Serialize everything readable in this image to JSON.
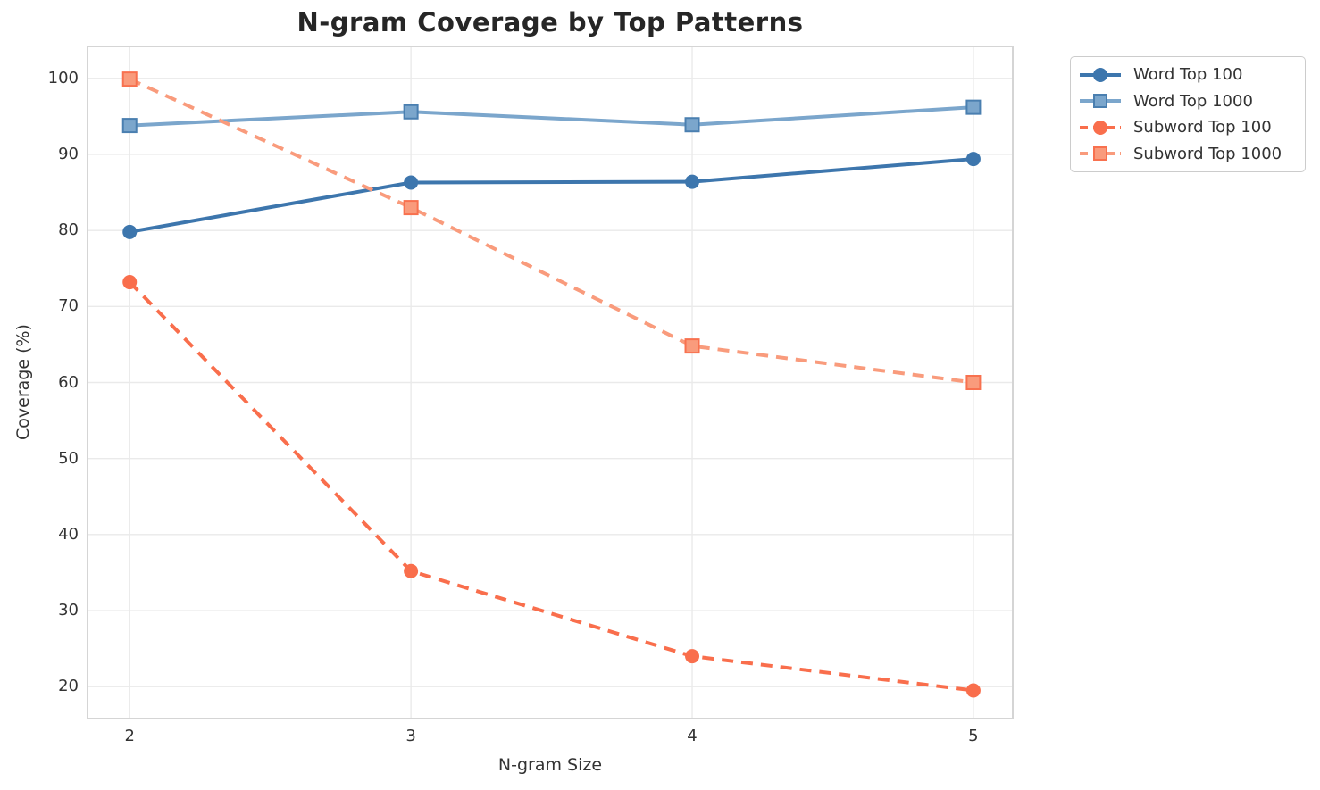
{
  "chart_data": {
    "type": "line",
    "title": "N-gram Coverage by Top Patterns",
    "xlabel": "N-gram Size",
    "ylabel": "Coverage (%)",
    "x": [
      2,
      3,
      4,
      5
    ],
    "xticks": [
      "2",
      "3",
      "4",
      "5"
    ],
    "yticks": [
      20,
      30,
      40,
      50,
      60,
      70,
      80,
      90,
      100
    ],
    "xlim": [
      1.85,
      5.14
    ],
    "ylim": [
      15.8,
      104.2
    ],
    "grid": true,
    "legend_position": "outside-right-top",
    "series": [
      {
        "name": "Word Top 100",
        "values": [
          79.8,
          86.3,
          86.4,
          89.4
        ],
        "color": "#3d76ad",
        "edge": "#32659a",
        "marker": "circle",
        "dash": "solid"
      },
      {
        "name": "Word Top 1000",
        "values": [
          93.8,
          95.6,
          93.9,
          96.2
        ],
        "color": "#7ba6cc",
        "edge": "#4a7fb0",
        "marker": "square",
        "dash": "solid"
      },
      {
        "name": "Subword Top 100",
        "values": [
          73.2,
          35.2,
          24.0,
          19.5
        ],
        "color": "#f96e4c",
        "edge": "#e85c3a",
        "marker": "circle",
        "dash": "dashed"
      },
      {
        "name": "Subword Top 1000",
        "values": [
          99.9,
          83.0,
          64.8,
          60.0
        ],
        "color": "#f99b7c",
        "edge": "#f8714f",
        "marker": "square",
        "dash": "dashed"
      }
    ],
    "colors": {
      "grid": "#eaeaea",
      "spine": "#d5d5d5",
      "title": "#262626",
      "axis_label": "#333333",
      "tick_label": "#333333",
      "legend_border": "#cccccc",
      "background": "#ffffff"
    }
  }
}
